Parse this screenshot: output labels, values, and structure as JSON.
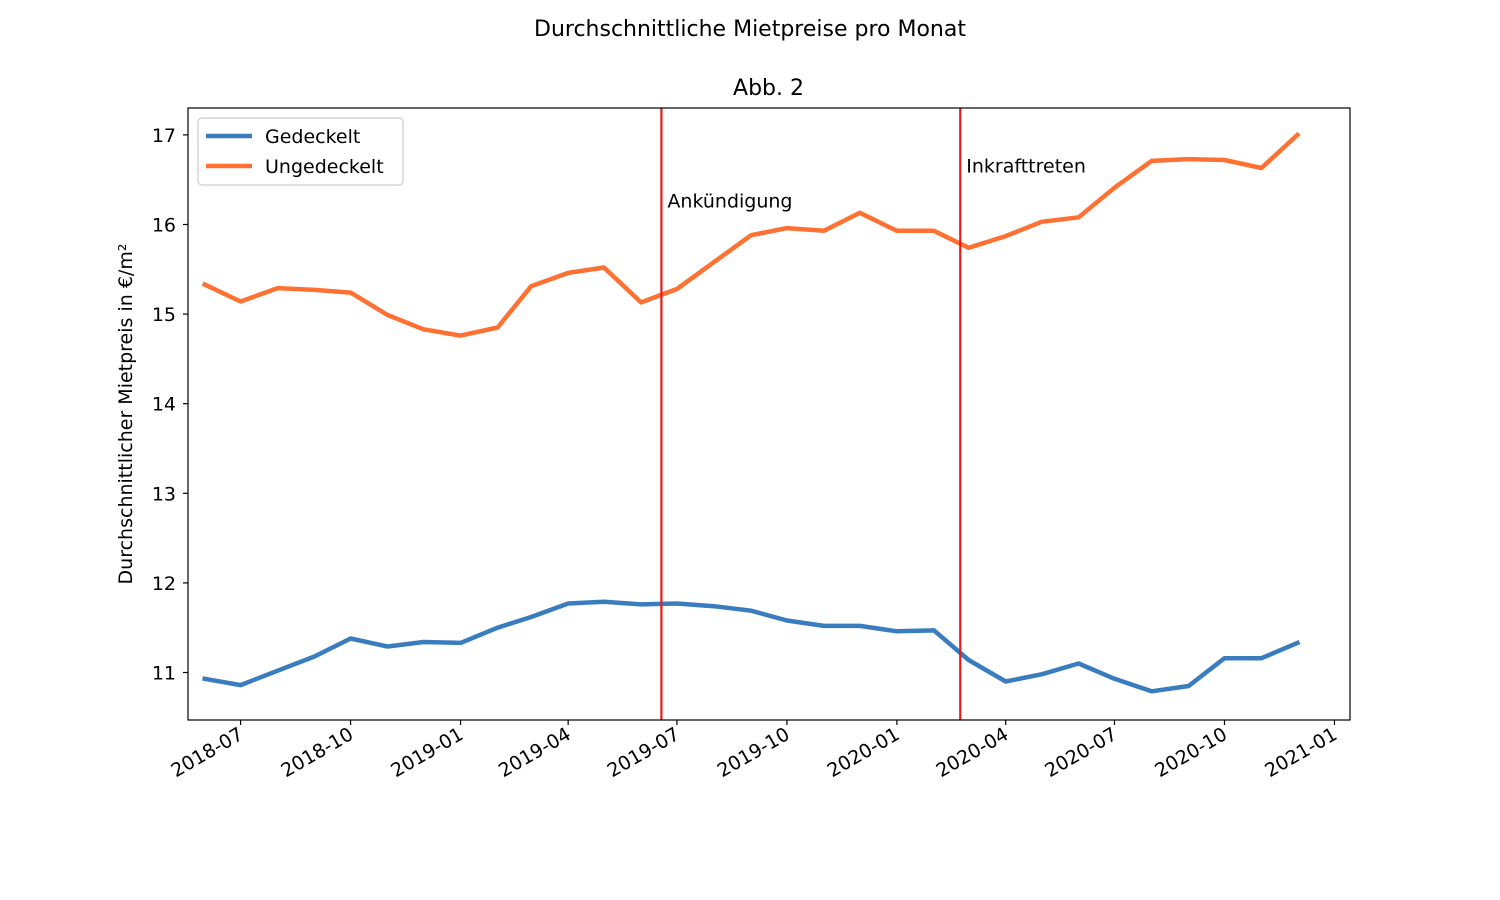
{
  "chart_data": {
    "type": "line",
    "suptitle": "Durchschnittliche Mietpreise pro Monat",
    "title": "Abb. 2",
    "xlabel": "",
    "ylabel": "Durchschnittlicher Mietpreis in €/m²",
    "xlim": [
      "2018-05-18",
      "2021-01-14"
    ],
    "ylim": [
      10.47,
      17.3
    ],
    "grid": false,
    "legend_position": "upper-left",
    "x_ticks": [
      "2018-07",
      "2018-10",
      "2019-01",
      "2019-04",
      "2019-07",
      "2019-10",
      "2020-01",
      "2020-04",
      "2020-07",
      "2020-10",
      "2021-01"
    ],
    "y_ticks": [
      11,
      12,
      13,
      14,
      15,
      16,
      17
    ],
    "x": [
      "2018-06",
      "2018-07",
      "2018-08",
      "2018-09",
      "2018-10",
      "2018-11",
      "2018-12",
      "2019-01",
      "2019-02",
      "2019-03",
      "2019-04",
      "2019-05",
      "2019-06",
      "2019-07",
      "2019-08",
      "2019-09",
      "2019-10",
      "2019-11",
      "2019-12",
      "2020-01",
      "2020-02",
      "2020-03",
      "2020-04",
      "2020-05",
      "2020-06",
      "2020-07",
      "2020-08",
      "2020-09",
      "2020-10",
      "2020-11",
      "2020-12"
    ],
    "series": [
      {
        "name": "Gedeckelt",
        "color": "#3a7dbf",
        "values": [
          10.93,
          10.86,
          11.02,
          11.18,
          11.38,
          11.29,
          11.34,
          11.33,
          11.5,
          11.62,
          11.77,
          11.79,
          11.76,
          11.77,
          11.74,
          11.69,
          11.58,
          11.52,
          11.52,
          11.46,
          11.47,
          11.14,
          10.9,
          10.98,
          11.1,
          10.93,
          10.79,
          10.85,
          11.16,
          11.16,
          11.33
        ]
      },
      {
        "name": "Ungedeckelt",
        "color": "#ff7133",
        "values": [
          15.33,
          15.14,
          15.29,
          15.27,
          15.24,
          14.99,
          14.83,
          14.76,
          14.85,
          15.31,
          15.46,
          15.52,
          15.13,
          15.28,
          15.58,
          15.88,
          15.96,
          15.93,
          16.13,
          15.93,
          15.93,
          15.74,
          15.87,
          16.03,
          16.08,
          16.41,
          16.71,
          16.73,
          16.72,
          16.63,
          17.0
        ]
      }
    ],
    "vlines": [
      {
        "date": "2019-06-18",
        "label": "Ankündigung",
        "label_y": 16.27,
        "color": "#e51a1a"
      },
      {
        "date": "2020-02-23",
        "label": "Inkrafttreten",
        "label_y": 16.66,
        "color": "#e51a1a"
      }
    ]
  }
}
